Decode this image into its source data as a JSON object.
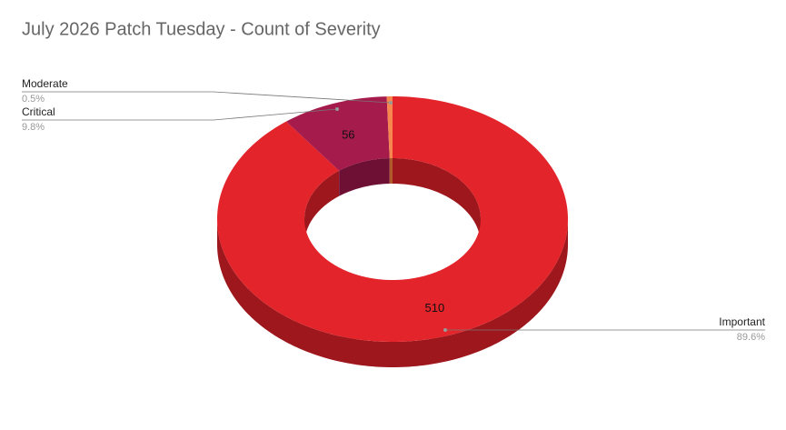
{
  "chart_data": {
    "type": "donut3d",
    "title": "July 2026 Patch Tuesday - Count of Severity",
    "categories": [
      "Important",
      "Critical",
      "Moderate"
    ],
    "values": [
      510,
      56,
      3
    ],
    "percent_labels": [
      "89.6%",
      "9.8%",
      "0.5%"
    ],
    "colors": [
      "#e3242b",
      "#a51b4b",
      "#f5874f"
    ],
    "side_colors": [
      "#9e171c",
      "#6e1034",
      "#b35a2c"
    ]
  }
}
